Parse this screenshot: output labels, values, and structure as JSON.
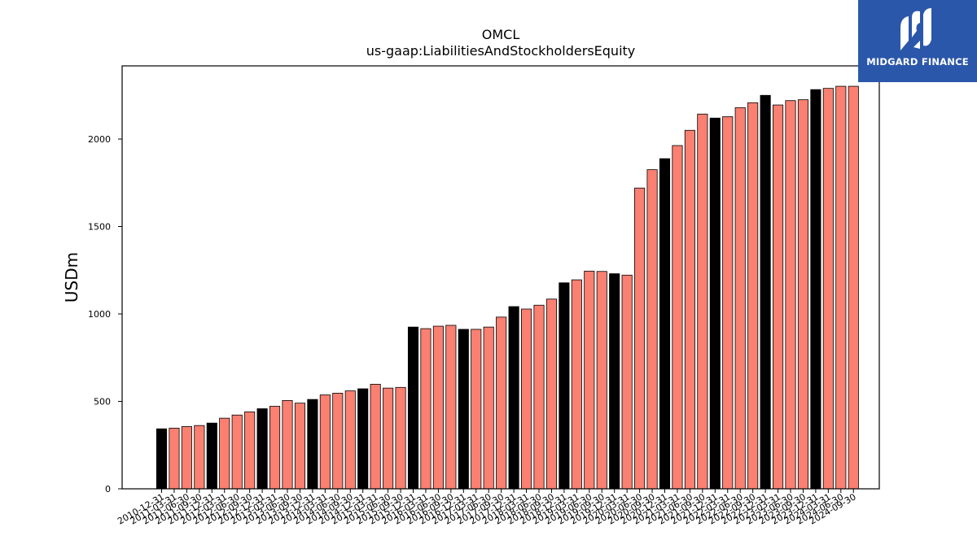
{
  "brand": {
    "name": "MIDGARD FINANCE",
    "logo_icon": "midgard-m-logo-icon",
    "color": "#2b57aa"
  },
  "chart_data": {
    "type": "bar",
    "title": "OMCL",
    "subtitle": "us-gaap:LiabilitiesAndStockholdersEquity",
    "xlabel": "",
    "ylabel": "USDm",
    "ylim": [
      0,
      2420
    ],
    "yticks": [
      0,
      500,
      1000,
      1500,
      2000
    ],
    "grid": false,
    "legend": "none",
    "colors": {
      "quarter": "#fa8072",
      "year_end": "#000000",
      "edge": "#000000"
    },
    "categories": [
      "2010-12-31",
      "2011-03-31",
      "2011-06-30",
      "2011-09-30",
      "2011-12-31",
      "2012-03-31",
      "2012-06-30",
      "2012-09-30",
      "2012-12-31",
      "2013-03-31",
      "2013-06-30",
      "2013-09-30",
      "2013-12-31",
      "2014-03-31",
      "2014-06-30",
      "2014-09-30",
      "2014-12-31",
      "2015-03-31",
      "2015-06-30",
      "2015-09-30",
      "2015-12-31",
      "2016-03-31",
      "2016-06-30",
      "2016-09-30",
      "2016-12-31",
      "2017-03-31",
      "2017-06-30",
      "2017-09-30",
      "2017-12-31",
      "2018-03-31",
      "2018-06-30",
      "2018-09-30",
      "2018-12-31",
      "2019-03-31",
      "2019-06-30",
      "2019-09-30",
      "2019-12-31",
      "2020-03-31",
      "2020-06-30",
      "2020-09-30",
      "2020-12-31",
      "2021-03-31",
      "2021-06-30",
      "2021-09-30",
      "2021-12-31",
      "2022-03-31",
      "2022-06-30",
      "2022-09-30",
      "2022-12-31",
      "2023-03-31",
      "2023-06-30",
      "2023-09-30",
      "2023-12-31",
      "2024-03-31",
      "2024-06-30",
      "2024-09-30"
    ],
    "values": [
      343,
      347,
      356,
      362,
      376,
      404,
      422,
      440,
      458,
      472,
      505,
      490,
      511,
      537,
      547,
      560,
      572,
      598,
      576,
      580,
      925,
      916,
      930,
      935,
      912,
      912,
      925,
      982,
      1042,
      1028,
      1050,
      1085,
      1178,
      1195,
      1245,
      1243,
      1230,
      1222,
      1720,
      1825,
      1888,
      1963,
      2050,
      2143,
      2120,
      2128,
      2180,
      2208,
      2250,
      2195,
      2220,
      2225,
      2283,
      2290,
      2302,
      2302
    ],
    "year_end": [
      1,
      0,
      0,
      0,
      1,
      0,
      0,
      0,
      1,
      0,
      0,
      0,
      1,
      0,
      0,
      0,
      1,
      0,
      0,
      0,
      1,
      0,
      0,
      0,
      1,
      0,
      0,
      0,
      1,
      0,
      0,
      0,
      1,
      0,
      0,
      0,
      1,
      0,
      0,
      0,
      1,
      0,
      0,
      0,
      1,
      0,
      0,
      0,
      1,
      0,
      0,
      0,
      1,
      0,
      0,
      0
    ]
  }
}
